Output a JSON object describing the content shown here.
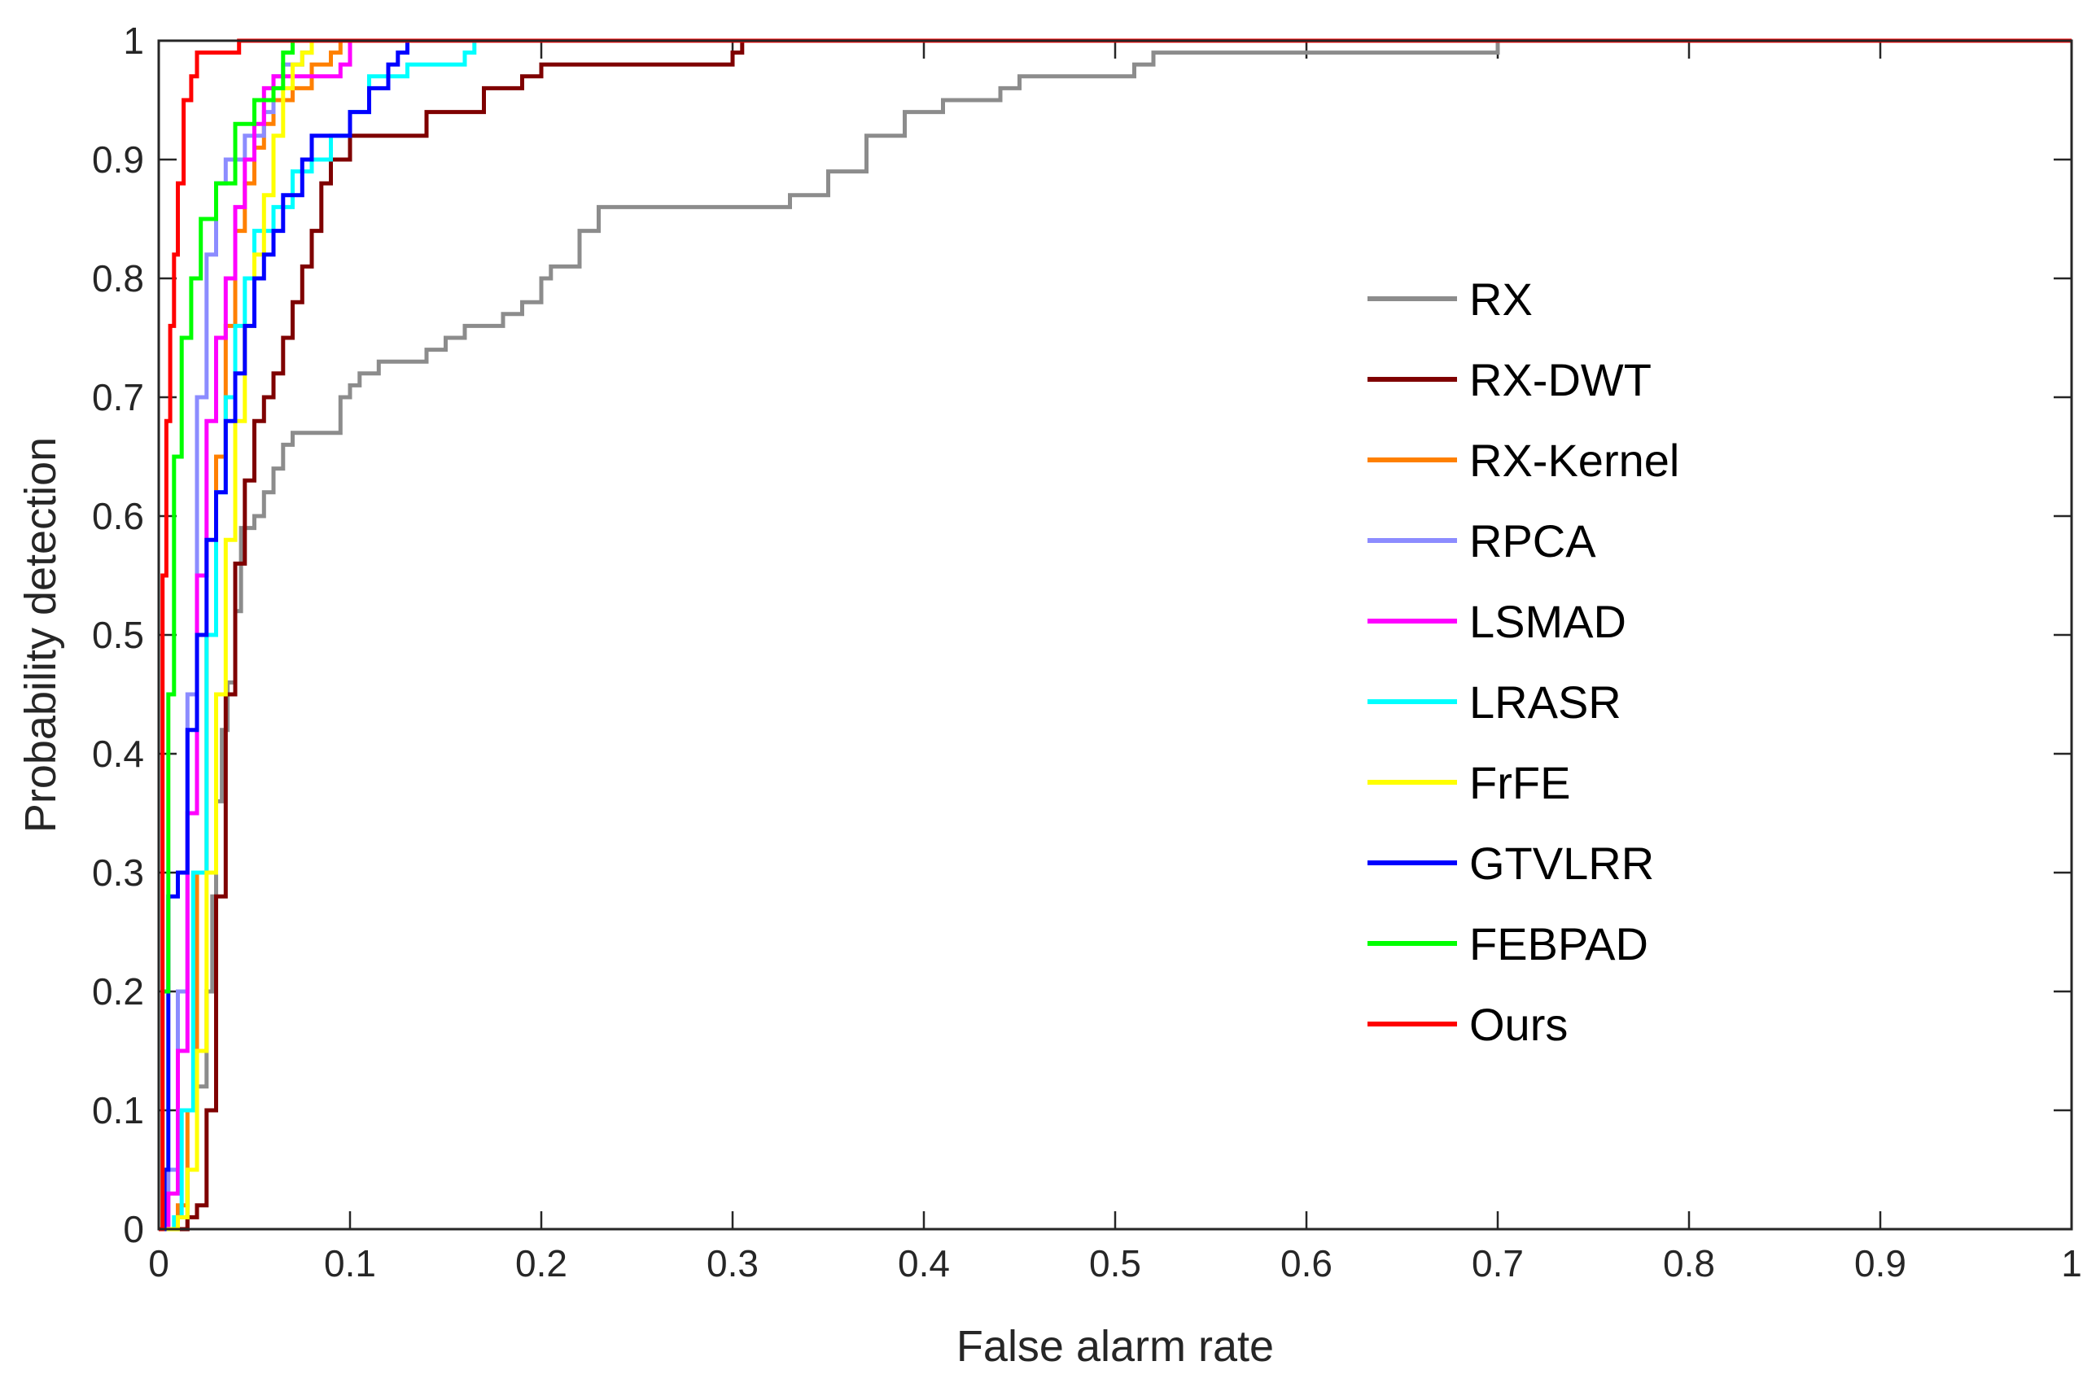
{
  "chart_data": {
    "type": "line",
    "title": "",
    "xlabel": "False alarm rate",
    "ylabel": "Probability detection",
    "xlim": [
      0,
      1
    ],
    "ylim": [
      0,
      1
    ],
    "xticks": [
      0,
      0.1,
      0.2,
      0.3,
      0.4,
      0.5,
      0.6,
      0.7,
      0.8,
      0.9,
      1
    ],
    "yticks": [
      0,
      0.1,
      0.2,
      0.3,
      0.4,
      0.5,
      0.6,
      0.7,
      0.8,
      0.9,
      1
    ],
    "xtick_labels": [
      "0",
      "0.1",
      "0.2",
      "0.3",
      "0.4",
      "0.5",
      "0.6",
      "0.7",
      "0.8",
      "0.9",
      "1"
    ],
    "ytick_labels": [
      "0",
      "0.1",
      "0.2",
      "0.3",
      "0.4",
      "0.5",
      "0.6",
      "0.7",
      "0.8",
      "0.9",
      "1"
    ],
    "grid": false,
    "legend_position": "center-right",
    "series": [
      {
        "name": "RX",
        "color": "#8c8c8c",
        "points": [
          [
            0,
            0
          ],
          [
            0.01,
            0
          ],
          [
            0.015,
            0.05
          ],
          [
            0.02,
            0.12
          ],
          [
            0.025,
            0.2
          ],
          [
            0.028,
            0.28
          ],
          [
            0.03,
            0.36
          ],
          [
            0.033,
            0.42
          ],
          [
            0.036,
            0.46
          ],
          [
            0.04,
            0.52
          ],
          [
            0.043,
            0.59
          ],
          [
            0.05,
            0.6
          ],
          [
            0.055,
            0.62
          ],
          [
            0.06,
            0.64
          ],
          [
            0.065,
            0.66
          ],
          [
            0.07,
            0.67
          ],
          [
            0.09,
            0.67
          ],
          [
            0.095,
            0.7
          ],
          [
            0.1,
            0.71
          ],
          [
            0.105,
            0.72
          ],
          [
            0.115,
            0.73
          ],
          [
            0.14,
            0.74
          ],
          [
            0.15,
            0.75
          ],
          [
            0.16,
            0.76
          ],
          [
            0.18,
            0.77
          ],
          [
            0.19,
            0.78
          ],
          [
            0.2,
            0.8
          ],
          [
            0.205,
            0.81
          ],
          [
            0.22,
            0.84
          ],
          [
            0.23,
            0.86
          ],
          [
            0.32,
            0.86
          ],
          [
            0.33,
            0.87
          ],
          [
            0.35,
            0.89
          ],
          [
            0.37,
            0.92
          ],
          [
            0.39,
            0.94
          ],
          [
            0.41,
            0.95
          ],
          [
            0.44,
            0.96
          ],
          [
            0.45,
            0.97
          ],
          [
            0.51,
            0.98
          ],
          [
            0.52,
            0.99
          ],
          [
            0.7,
            0.99
          ],
          [
            0.7,
            1
          ],
          [
            1,
            1
          ]
        ]
      },
      {
        "name": "RX-DWT",
        "color": "#7f0000",
        "points": [
          [
            0,
            0
          ],
          [
            0.012,
            0
          ],
          [
            0.015,
            0.01
          ],
          [
            0.02,
            0.02
          ],
          [
            0.025,
            0.1
          ],
          [
            0.03,
            0.28
          ],
          [
            0.035,
            0.45
          ],
          [
            0.04,
            0.56
          ],
          [
            0.045,
            0.63
          ],
          [
            0.05,
            0.68
          ],
          [
            0.055,
            0.7
          ],
          [
            0.06,
            0.72
          ],
          [
            0.065,
            0.75
          ],
          [
            0.07,
            0.78
          ],
          [
            0.075,
            0.81
          ],
          [
            0.08,
            0.84
          ],
          [
            0.085,
            0.88
          ],
          [
            0.09,
            0.9
          ],
          [
            0.1,
            0.92
          ],
          [
            0.135,
            0.92
          ],
          [
            0.14,
            0.94
          ],
          [
            0.165,
            0.94
          ],
          [
            0.17,
            0.96
          ],
          [
            0.19,
            0.97
          ],
          [
            0.2,
            0.98
          ],
          [
            0.3,
            0.99
          ],
          [
            0.305,
            1
          ],
          [
            1,
            1
          ]
        ]
      },
      {
        "name": "RX-Kernel",
        "color": "#ff8000",
        "points": [
          [
            0,
            0
          ],
          [
            0.01,
            0.02
          ],
          [
            0.015,
            0.1
          ],
          [
            0.02,
            0.3
          ],
          [
            0.025,
            0.5
          ],
          [
            0.03,
            0.65
          ],
          [
            0.035,
            0.76
          ],
          [
            0.04,
            0.84
          ],
          [
            0.045,
            0.88
          ],
          [
            0.05,
            0.91
          ],
          [
            0.055,
            0.93
          ],
          [
            0.06,
            0.95
          ],
          [
            0.07,
            0.96
          ],
          [
            0.08,
            0.98
          ],
          [
            0.09,
            0.99
          ],
          [
            0.095,
            1
          ],
          [
            1,
            1
          ]
        ]
      },
      {
        "name": "RPCA",
        "color": "#8c8cff",
        "points": [
          [
            0,
            0
          ],
          [
            0.005,
            0.05
          ],
          [
            0.01,
            0.2
          ],
          [
            0.015,
            0.45
          ],
          [
            0.02,
            0.7
          ],
          [
            0.025,
            0.82
          ],
          [
            0.03,
            0.88
          ],
          [
            0.035,
            0.9
          ],
          [
            0.045,
            0.92
          ],
          [
            0.055,
            0.94
          ],
          [
            0.06,
            0.97
          ],
          [
            0.065,
            0.98
          ],
          [
            0.075,
            0.99
          ],
          [
            0.08,
            1
          ],
          [
            1,
            1
          ]
        ]
      },
      {
        "name": "LSMAD",
        "color": "#ff00ff",
        "points": [
          [
            0,
            0
          ],
          [
            0.005,
            0.03
          ],
          [
            0.01,
            0.15
          ],
          [
            0.015,
            0.35
          ],
          [
            0.02,
            0.55
          ],
          [
            0.025,
            0.68
          ],
          [
            0.03,
            0.75
          ],
          [
            0.035,
            0.8
          ],
          [
            0.04,
            0.86
          ],
          [
            0.045,
            0.9
          ],
          [
            0.05,
            0.93
          ],
          [
            0.055,
            0.96
          ],
          [
            0.06,
            0.97
          ],
          [
            0.095,
            0.98
          ],
          [
            0.1,
            1
          ],
          [
            1,
            1
          ]
        ]
      },
      {
        "name": "LRASR",
        "color": "#00ffff",
        "points": [
          [
            0,
            0
          ],
          [
            0.008,
            0.01
          ],
          [
            0.012,
            0.1
          ],
          [
            0.018,
            0.3
          ],
          [
            0.025,
            0.5
          ],
          [
            0.03,
            0.62
          ],
          [
            0.035,
            0.7
          ],
          [
            0.04,
            0.76
          ],
          [
            0.045,
            0.8
          ],
          [
            0.05,
            0.84
          ],
          [
            0.06,
            0.86
          ],
          [
            0.07,
            0.89
          ],
          [
            0.08,
            0.9
          ],
          [
            0.09,
            0.92
          ],
          [
            0.1,
            0.94
          ],
          [
            0.11,
            0.97
          ],
          [
            0.13,
            0.98
          ],
          [
            0.16,
            0.99
          ],
          [
            0.165,
            1
          ],
          [
            1,
            1
          ]
        ]
      },
      {
        "name": "FrFE",
        "color": "#ffff00",
        "points": [
          [
            0,
            0
          ],
          [
            0.01,
            0.01
          ],
          [
            0.015,
            0.05
          ],
          [
            0.02,
            0.15
          ],
          [
            0.025,
            0.3
          ],
          [
            0.03,
            0.45
          ],
          [
            0.035,
            0.58
          ],
          [
            0.04,
            0.68
          ],
          [
            0.045,
            0.76
          ],
          [
            0.05,
            0.82
          ],
          [
            0.055,
            0.87
          ],
          [
            0.06,
            0.92
          ],
          [
            0.065,
            0.96
          ],
          [
            0.07,
            0.98
          ],
          [
            0.075,
            0.99
          ],
          [
            0.08,
            1
          ],
          [
            1,
            1
          ]
        ]
      },
      {
        "name": "GTVLRR",
        "color": "#0000ff",
        "points": [
          [
            0,
            0
          ],
          [
            0.003,
            0.05
          ],
          [
            0.005,
            0.28
          ],
          [
            0.01,
            0.3
          ],
          [
            0.015,
            0.42
          ],
          [
            0.02,
            0.5
          ],
          [
            0.025,
            0.58
          ],
          [
            0.03,
            0.62
          ],
          [
            0.035,
            0.68
          ],
          [
            0.04,
            0.72
          ],
          [
            0.045,
            0.76
          ],
          [
            0.05,
            0.8
          ],
          [
            0.055,
            0.82
          ],
          [
            0.06,
            0.84
          ],
          [
            0.065,
            0.87
          ],
          [
            0.075,
            0.9
          ],
          [
            0.08,
            0.92
          ],
          [
            0.1,
            0.94
          ],
          [
            0.11,
            0.96
          ],
          [
            0.12,
            0.98
          ],
          [
            0.125,
            0.99
          ],
          [
            0.13,
            1
          ],
          [
            1,
            1
          ]
        ]
      },
      {
        "name": "FEBPAD",
        "color": "#00ff00",
        "points": [
          [
            0,
            0
          ],
          [
            0.002,
            0.2
          ],
          [
            0.005,
            0.45
          ],
          [
            0.008,
            0.65
          ],
          [
            0.012,
            0.75
          ],
          [
            0.017,
            0.8
          ],
          [
            0.022,
            0.85
          ],
          [
            0.03,
            0.88
          ],
          [
            0.04,
            0.93
          ],
          [
            0.05,
            0.95
          ],
          [
            0.06,
            0.96
          ],
          [
            0.065,
            0.99
          ],
          [
            0.07,
            1
          ],
          [
            1,
            1
          ]
        ]
      },
      {
        "name": "Ours",
        "color": "#ff0000",
        "points": [
          [
            0,
            0
          ],
          [
            0.002,
            0.55
          ],
          [
            0.004,
            0.68
          ],
          [
            0.006,
            0.76
          ],
          [
            0.008,
            0.82
          ],
          [
            0.01,
            0.88
          ],
          [
            0.013,
            0.95
          ],
          [
            0.017,
            0.97
          ],
          [
            0.02,
            0.99
          ],
          [
            0.04,
            0.99
          ],
          [
            0.042,
            1
          ],
          [
            1,
            1
          ]
        ]
      }
    ]
  }
}
